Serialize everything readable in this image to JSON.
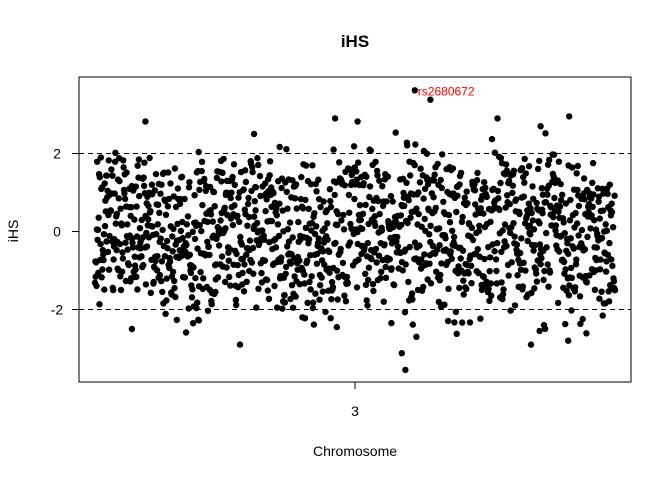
{
  "chart_data": {
    "type": "scatter",
    "title": "iHS",
    "xlabel": "Chromosome",
    "ylabel": "iHS",
    "x_ticks": [
      {
        "label": "3"
      }
    ],
    "y_ticks": [
      -2,
      0,
      2
    ],
    "y_tick_labels": [
      "-2",
      "0",
      "2"
    ],
    "ylim": [
      -3.8,
      3.8
    ],
    "xlim": [
      0,
      1
    ],
    "reference_lines": [
      -2,
      2
    ],
    "grid": false,
    "legend": "none",
    "point_color": "#000000",
    "point_count": 1400,
    "extreme_points": [
      {
        "x": 0.615,
        "y": 3.62
      },
      {
        "x": 0.645,
        "y": 3.38
      },
      {
        "x": 0.912,
        "y": 2.95
      },
      {
        "x": 0.097,
        "y": 2.82
      },
      {
        "x": 0.505,
        "y": 2.82
      },
      {
        "x": 0.306,
        "y": 2.5
      },
      {
        "x": 0.857,
        "y": 2.7
      },
      {
        "x": 0.59,
        "y": -3.12
      },
      {
        "x": 0.597,
        "y": -3.55
      },
      {
        "x": 0.618,
        "y": -2.7
      },
      {
        "x": 0.071,
        "y": -2.5
      },
      {
        "x": 0.2,
        "y": -2.28
      },
      {
        "x": 0.855,
        "y": -2.55
      },
      {
        "x": 0.91,
        "y": -2.8
      },
      {
        "x": 0.465,
        "y": -2.45
      },
      {
        "x": 0.57,
        "y": -2.35
      }
    ],
    "annotation": {
      "text": "rs2680672",
      "x": 0.615,
      "y": 3.62,
      "color": "#ff0000"
    }
  }
}
